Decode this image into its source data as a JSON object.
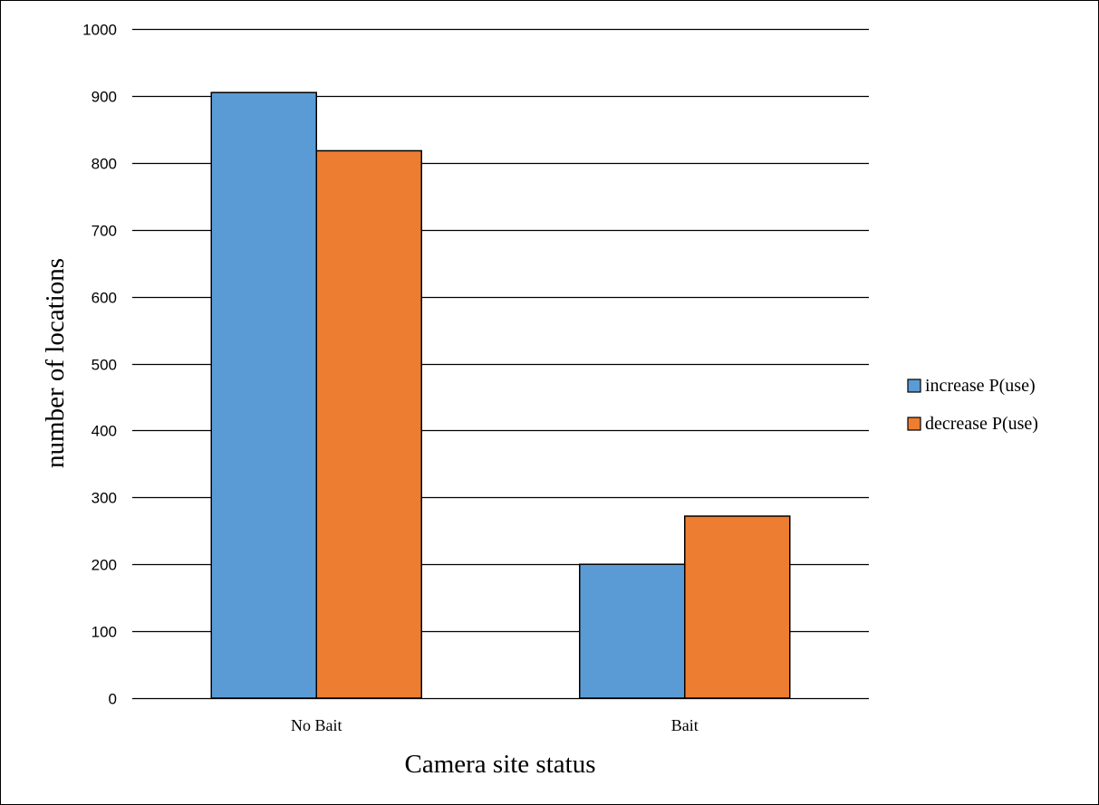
{
  "chart_data": {
    "type": "bar",
    "categories": [
      "No Bait",
      "Bait"
    ],
    "series": [
      {
        "name": "increase P(use)",
        "values": [
          905,
          200
        ],
        "color": "#5b9bd5"
      },
      {
        "name": "decrease P(use)",
        "values": [
          818,
          272
        ],
        "color": "#ed7d31"
      }
    ],
    "title": "",
    "xlabel": "Camera site status",
    "ylabel": "number of locations",
    "ylim": [
      0,
      1000
    ],
    "yticks": [
      0,
      100,
      200,
      300,
      400,
      500,
      600,
      700,
      800,
      900,
      1000
    ],
    "grid": true,
    "legend": "right"
  }
}
